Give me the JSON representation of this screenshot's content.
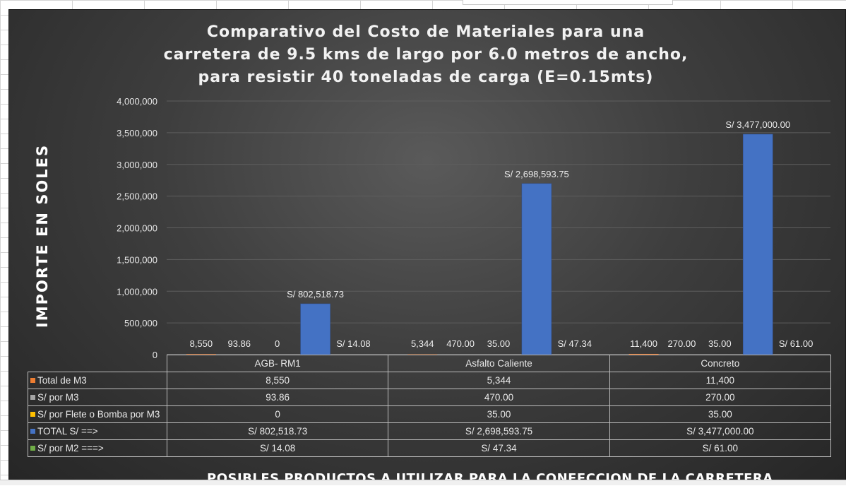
{
  "chart_data": {
    "type": "bar",
    "title_lines": [
      "Comparativo del Costo de Materiales para una",
      "carretera de 9.5 kms de largo por 6.0 metros de ancho,",
      "para resistir 40 toneladas de carga (E=0.15mts)"
    ],
    "ylabel": "IMPORTE EN SOLES",
    "xlabel": "POSIBLES PRODUCTOS A UTILIZAR PARA LA CONFECCION DE LA CARRETERA",
    "categories": [
      "AGB- RM1",
      "Asfalto Caliente",
      "Concreto"
    ],
    "ylim": [
      0,
      4000000
    ],
    "yticks": [
      {
        "value": 0,
        "label": "0"
      },
      {
        "value": 500000,
        "label": "500,000"
      },
      {
        "value": 1000000,
        "label": "1,000,000"
      },
      {
        "value": 1500000,
        "label": "1,500,000"
      },
      {
        "value": 2000000,
        "label": "2,000,000"
      },
      {
        "value": 2500000,
        "label": "2,500,000"
      },
      {
        "value": 3000000,
        "label": "3,000,000"
      },
      {
        "value": 3500000,
        "label": "3,500,000"
      },
      {
        "value": 4000000,
        "label": "4,000,000"
      }
    ],
    "grid": true,
    "legend": "data table below chart",
    "series": [
      {
        "name": "Total de M3",
        "color": "#ed7d31",
        "values": [
          8550,
          5344,
          11400
        ],
        "labels": [
          "8,550",
          "5,344",
          "11,400"
        ]
      },
      {
        "name": "S/ por M3",
        "color": "#a5a5a5",
        "values": [
          93.86,
          470.0,
          270.0
        ],
        "labels": [
          "93.86",
          "470.00",
          "270.00"
        ]
      },
      {
        "name": "S/ por Flete o Bomba por M3",
        "color": "#ffc000",
        "values": [
          0,
          35.0,
          35.0
        ],
        "labels": [
          "0",
          "35.00",
          "35.00"
        ]
      },
      {
        "name": "TOTAL S/ ==>",
        "color": "#4472c4",
        "values": [
          802518.73,
          2698593.75,
          3477000.0
        ],
        "labels": [
          "S/ 802,518.73",
          "S/ 2,698,593.75",
          "S/ 3,477,000.00"
        ]
      },
      {
        "name": "S/ por M2 ===>",
        "color": "#70ad47",
        "values": [
          14.08,
          47.34,
          61.0
        ],
        "labels": [
          "S/ 14.08",
          "S/ 47.34",
          "S/ 61.00"
        ]
      }
    ]
  }
}
